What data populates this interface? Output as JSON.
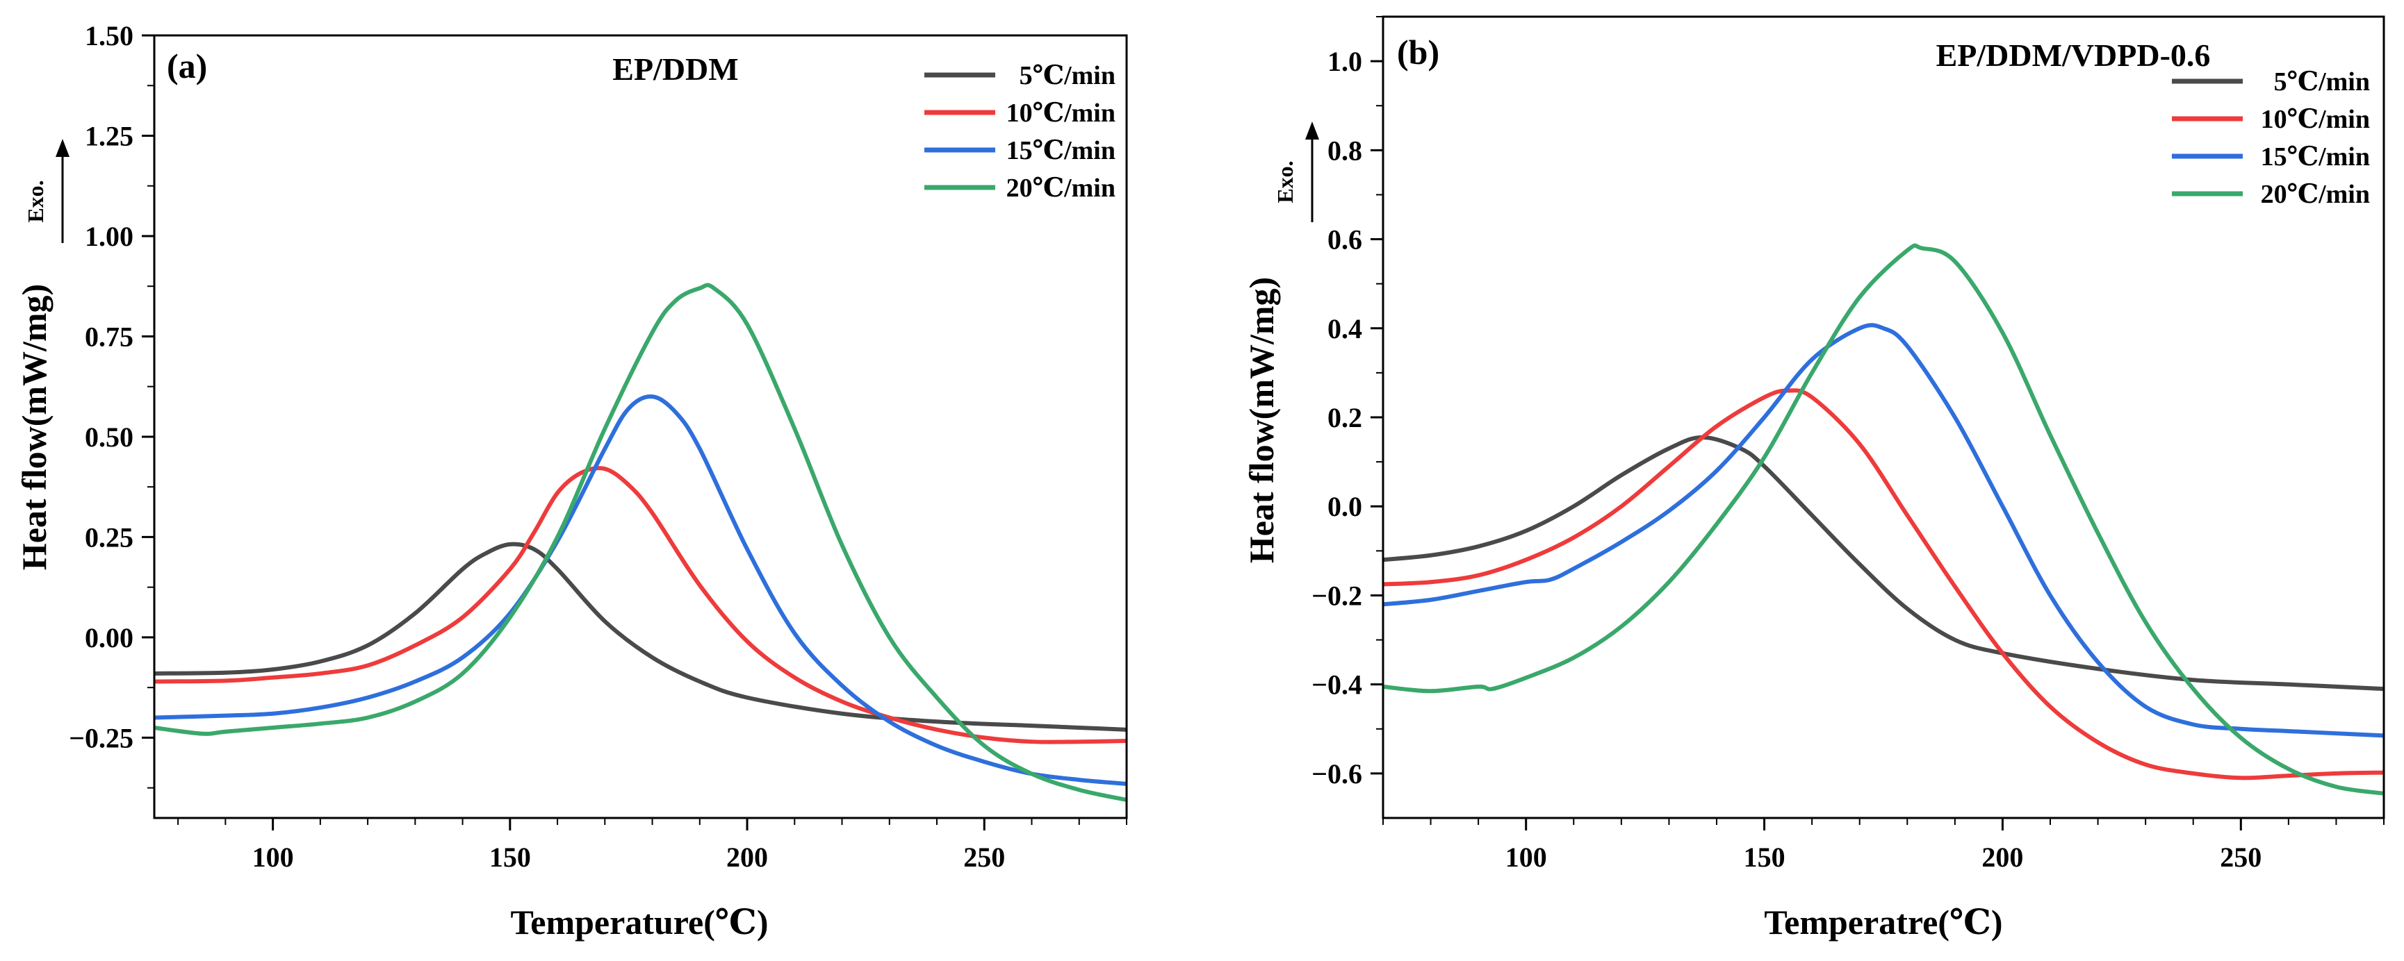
{
  "colors": {
    "5C": "#4a4a4a",
    "10C": "#ee3b3b",
    "15C": "#2e6fdc",
    "20C": "#3aa86b"
  },
  "chart_data": [
    {
      "type": "line",
      "panel_label": "(a)",
      "title": "EP/DDM",
      "xlabel": "Temperature(℃)",
      "ylabel": "Heat flow(mW/mg)",
      "exo_label": "Exo.",
      "xlim": [
        75,
        280
      ],
      "ylim": [
        -0.45,
        1.5
      ],
      "x_ticks": [
        100,
        150,
        200,
        250
      ],
      "y_ticks": [
        -0.25,
        0.0,
        0.25,
        0.5,
        0.75,
        1.0,
        1.25,
        1.5
      ],
      "x_tick_labels": [
        "100",
        "150",
        "200",
        "250"
      ],
      "y_tick_labels": [
        "−0.25",
        "0.00",
        "0.25",
        "0.50",
        "0.75",
        "1.00",
        "1.25",
        "1.50"
      ],
      "legend_position": "top-right",
      "series": [
        {
          "name": "5℃/min",
          "color_key": "5C",
          "x": [
            75,
            90,
            100,
            110,
            120,
            130,
            140,
            145,
            150,
            155,
            160,
            170,
            180,
            190,
            200,
            220,
            240,
            260,
            270,
            280
          ],
          "y": [
            -0.09,
            -0.088,
            -0.08,
            -0.06,
            -0.02,
            0.06,
            0.17,
            0.21,
            0.232,
            0.22,
            0.17,
            0.04,
            -0.05,
            -0.11,
            -0.15,
            -0.19,
            -0.21,
            -0.22,
            -0.225,
            -0.23
          ]
        },
        {
          "name": "10℃/min",
          "color_key": "10C",
          "x": [
            75,
            90,
            100,
            110,
            120,
            130,
            140,
            150,
            155,
            160,
            165,
            170,
            175,
            180,
            190,
            200,
            210,
            220,
            230,
            240,
            250,
            260,
            270,
            280
          ],
          "y": [
            -0.11,
            -0.108,
            -0.1,
            -0.09,
            -0.07,
            -0.02,
            0.05,
            0.17,
            0.26,
            0.36,
            0.41,
            0.42,
            0.38,
            0.31,
            0.13,
            -0.01,
            -0.1,
            -0.16,
            -0.2,
            -0.23,
            -0.25,
            -0.26,
            -0.26,
            -0.258
          ]
        },
        {
          "name": "15℃/min",
          "color_key": "15C",
          "x": [
            75,
            90,
            100,
            110,
            120,
            130,
            140,
            150,
            160,
            170,
            175,
            180,
            185,
            190,
            200,
            210,
            220,
            230,
            240,
            250,
            260,
            270,
            280
          ],
          "y": [
            -0.2,
            -0.195,
            -0.19,
            -0.175,
            -0.15,
            -0.11,
            -0.05,
            0.06,
            0.24,
            0.47,
            0.57,
            0.6,
            0.56,
            0.47,
            0.22,
            0.01,
            -0.12,
            -0.21,
            -0.27,
            -0.31,
            -0.34,
            -0.355,
            -0.365
          ]
        },
        {
          "name": "20℃/min",
          "color_key": "20C",
          "x": [
            75,
            85,
            90,
            100,
            110,
            120,
            130,
            140,
            150,
            160,
            170,
            180,
            185,
            190,
            193,
            200,
            210,
            220,
            230,
            240,
            250,
            260,
            270,
            280
          ],
          "y": [
            -0.225,
            -0.24,
            -0.235,
            -0.225,
            -0.215,
            -0.2,
            -0.16,
            -0.09,
            0.05,
            0.25,
            0.52,
            0.76,
            0.84,
            0.87,
            0.87,
            0.78,
            0.52,
            0.23,
            0.0,
            -0.15,
            -0.27,
            -0.34,
            -0.38,
            -0.405
          ]
        }
      ]
    },
    {
      "type": "line",
      "panel_label": "(b)",
      "title": "EP/DDM/VDPD-0.6",
      "xlabel": "Temperatre(℃)",
      "ylabel": "Heat flow(mW/mg)",
      "exo_label": "Exo.",
      "xlim": [
        70,
        280
      ],
      "ylim": [
        -0.7,
        1.1
      ],
      "x_ticks": [
        100,
        150,
        200,
        250
      ],
      "y_ticks": [
        -0.6,
        -0.4,
        -0.2,
        0.0,
        0.2,
        0.4,
        0.6,
        0.8,
        1.0
      ],
      "x_tick_labels": [
        "100",
        "150",
        "200",
        "250"
      ],
      "y_tick_labels": [
        "−0.6",
        "−0.4",
        "−0.2",
        "0.0",
        "0.2",
        "0.4",
        "0.6",
        "0.8",
        "1.0"
      ],
      "legend_position": "top-right",
      "series": [
        {
          "name": "5℃/min",
          "color_key": "5C",
          "x": [
            70,
            80,
            90,
            100,
            110,
            120,
            130,
            137,
            145,
            150,
            160,
            170,
            180,
            190,
            200,
            220,
            240,
            260,
            280
          ],
          "y": [
            -0.12,
            -0.11,
            -0.09,
            -0.055,
            0.0,
            0.07,
            0.13,
            0.155,
            0.13,
            0.09,
            -0.02,
            -0.13,
            -0.23,
            -0.3,
            -0.33,
            -0.365,
            -0.39,
            -0.4,
            -0.41
          ]
        },
        {
          "name": "10℃/min",
          "color_key": "10C",
          "x": [
            70,
            80,
            90,
            100,
            110,
            120,
            130,
            140,
            150,
            155,
            160,
            170,
            180,
            190,
            200,
            210,
            220,
            230,
            240,
            250,
            260,
            270,
            280
          ],
          "y": [
            -0.175,
            -0.17,
            -0.155,
            -0.12,
            -0.07,
            0.0,
            0.09,
            0.18,
            0.245,
            0.26,
            0.245,
            0.14,
            -0.02,
            -0.18,
            -0.33,
            -0.45,
            -0.53,
            -0.58,
            -0.6,
            -0.61,
            -0.605,
            -0.6,
            -0.598
          ]
        },
        {
          "name": "15℃/min",
          "color_key": "15C",
          "x": [
            70,
            80,
            90,
            100,
            105,
            110,
            120,
            130,
            140,
            150,
            160,
            170,
            175,
            180,
            190,
            200,
            210,
            220,
            230,
            240,
            250,
            260,
            270,
            280
          ],
          "y": [
            -0.22,
            -0.21,
            -0.19,
            -0.17,
            -0.165,
            -0.14,
            -0.08,
            -0.01,
            0.08,
            0.2,
            0.33,
            0.4,
            0.4,
            0.36,
            0.2,
            0.0,
            -0.2,
            -0.35,
            -0.45,
            -0.49,
            -0.5,
            -0.505,
            -0.51,
            -0.515
          ]
        },
        {
          "name": "20℃/min",
          "color_key": "20C",
          "x": [
            70,
            80,
            90,
            93,
            100,
            110,
            120,
            130,
            140,
            150,
            160,
            170,
            180,
            183,
            190,
            200,
            210,
            220,
            230,
            240,
            250,
            260,
            270,
            280
          ],
          "y": [
            -0.405,
            -0.415,
            -0.405,
            -0.41,
            -0.385,
            -0.34,
            -0.27,
            -0.17,
            -0.04,
            0.11,
            0.3,
            0.47,
            0.575,
            0.58,
            0.55,
            0.39,
            0.16,
            -0.06,
            -0.26,
            -0.41,
            -0.52,
            -0.59,
            -0.63,
            -0.645
          ]
        }
      ]
    }
  ]
}
